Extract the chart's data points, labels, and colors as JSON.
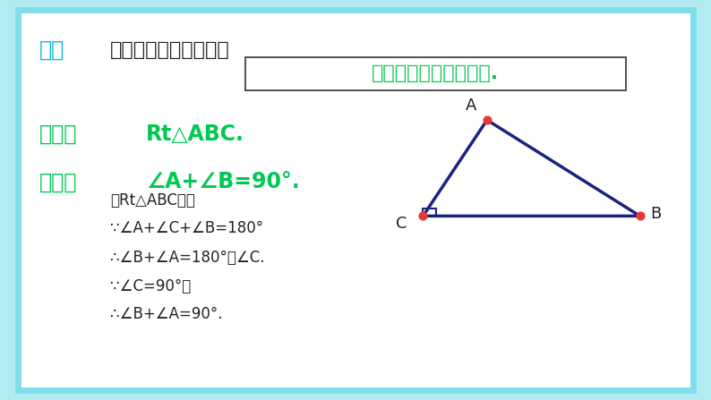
{
  "background_color": "#b2ebf2",
  "slide_bg": "#ffffff",
  "border_color": "#80deea",
  "title_label": "总结",
  "title_label_color": "#00bcd4",
  "title_text": "直角三角形的性质定理",
  "title_text_color": "#212121",
  "theorem_box_text": "直角三角形两锐角互余.",
  "theorem_box_color": "#00c853",
  "theorem_box_border": "#333333",
  "given_label": "已知：",
  "given_label_color": "#00c853",
  "given_text": "Rt△ABC.",
  "given_text_color": "#00c853",
  "prove_label": "求证：",
  "prove_label_color": "#00c853",
  "prove_text": "∠A+∠B=90°.",
  "prove_text_color": "#00c853",
  "proof_lines": [
    "在Rt△ABC中，",
    "∵∠A+∠C+∠B=180°",
    "∴∠B+∠A=180°－∠C.",
    "∵∠C=90°，",
    "∴∠B+∠A=90°."
  ],
  "proof_color": "#222222",
  "triangle_A": [
    0.685,
    0.7
  ],
  "triangle_B": [
    0.9,
    0.46
  ],
  "triangle_C": [
    0.595,
    0.46
  ],
  "triangle_color": "#1a237e",
  "triangle_linewidth": 2.5,
  "vertex_dot_color": "#e53935",
  "vertex_dot_size": 40,
  "vertex_label_color": "#212121",
  "sq_size": 0.018
}
